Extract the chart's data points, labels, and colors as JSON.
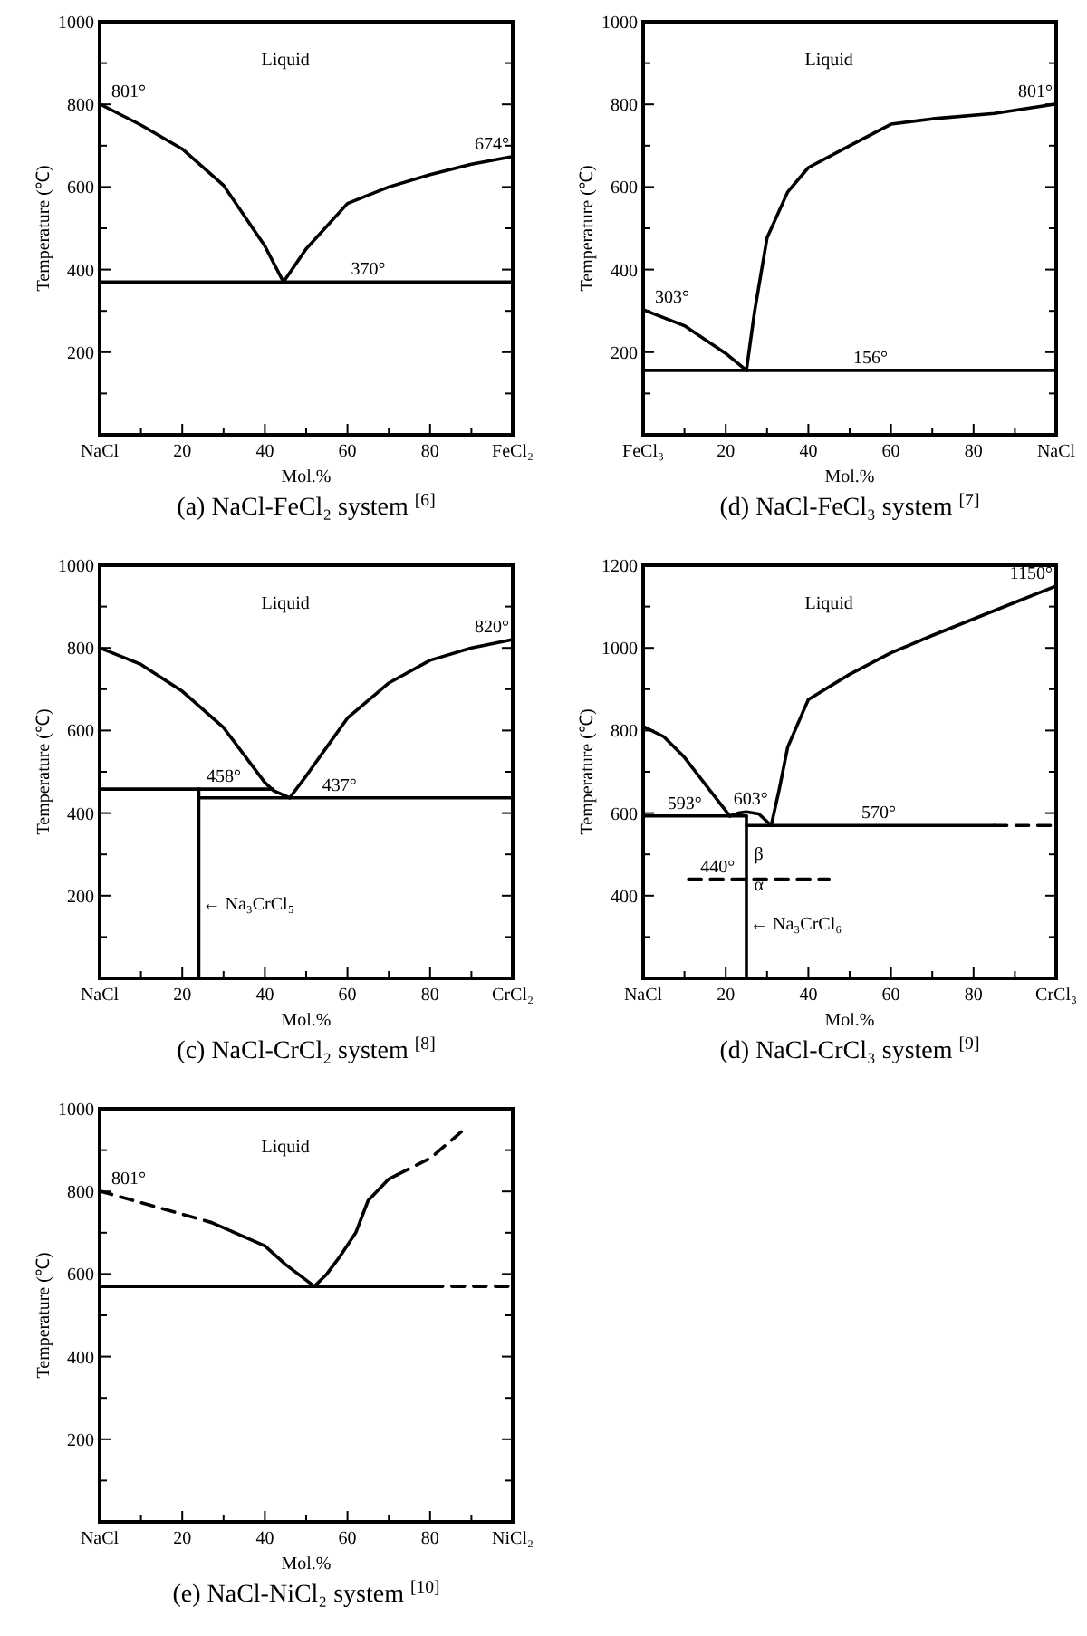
{
  "chart_data": [
    {
      "type": "line",
      "title": "(a) NaCl-FeCl₂ system $^{[6]}$",
      "xlabel": "Mol.%",
      "ylabel": "Temperature (℃)",
      "xlim": [
        0,
        100
      ],
      "ylim": [
        0,
        1000
      ],
      "xticks": [
        {
          "value": 0,
          "label": "NaCl"
        },
        {
          "value": 10,
          "label": null
        },
        20,
        {
          "value": 30,
          "label": null
        },
        40,
        {
          "value": 50,
          "label": null
        },
        60,
        {
          "value": 70,
          "label": null
        },
        80,
        {
          "value": 90,
          "label": null
        },
        {
          "value": 100,
          "label": "FeCl₂"
        }
      ],
      "yticks": [
        {
          "value": 0,
          "label": null
        },
        {
          "value": 100,
          "label": null
        },
        200,
        {
          "value": 300,
          "label": null
        },
        400,
        {
          "value": 500,
          "label": null
        },
        600,
        {
          "value": 700,
          "label": null
        },
        800,
        {
          "value": 900,
          "label": null
        },
        1000
      ],
      "series": [
        {
          "color": "#000000",
          "x": [
            0,
            10,
            20,
            30,
            40,
            44.5
          ],
          "values": [
            801,
            750,
            692,
            604,
            457,
            370
          ]
        },
        {
          "color": "#000000",
          "x": [
            44.5,
            50,
            60,
            70,
            80,
            90,
            100
          ],
          "values": [
            370,
            450,
            560,
            600,
            630,
            655,
            674
          ]
        },
        {
          "color": "#000000",
          "x": [
            0,
            100
          ],
          "values": [
            370,
            370
          ]
        }
      ],
      "annotations": [
        "Liquid",
        {
          "text": "801°",
          "x": 2,
          "y": 801
        },
        {
          "text": "674°",
          "x": 100,
          "y": 674
        },
        {
          "text": "370°",
          "x": 60,
          "y": 370
        }
      ]
    },
    {
      "type": "line",
      "title": "(d) NaCl-FeCl₃ system $^{[7]}$",
      "xlabel": "Mol.%",
      "ylabel": "Temperature (℃)",
      "xlim": [
        0,
        100
      ],
      "ylim": [
        0,
        1000
      ],
      "xticks": [
        {
          "value": 0,
          "label": "FeCl₃"
        },
        {
          "value": 10,
          "label": null
        },
        20,
        {
          "value": 30,
          "label": null
        },
        40,
        {
          "value": 50,
          "label": null
        },
        60,
        {
          "value": 70,
          "label": null
        },
        80,
        {
          "value": 90,
          "label": null
        },
        {
          "value": 100,
          "label": "NaCl"
        }
      ],
      "yticks": [
        {
          "value": 0,
          "label": null
        },
        {
          "value": 100,
          "label": null
        },
        200,
        {
          "value": 300,
          "label": null
        },
        400,
        {
          "value": 500,
          "label": null
        },
        600,
        {
          "value": 700,
          "label": null
        },
        800,
        {
          "value": 900,
          "label": null
        },
        1000
      ],
      "series": [
        {
          "color": "#000000",
          "x": [
            0,
            10,
            20,
            25
          ],
          "values": [
            303,
            264,
            197,
            156
          ]
        },
        {
          "color": "#000000",
          "x": [
            25,
            27,
            30,
            35,
            40,
            50,
            60,
            70,
            85,
            100
          ],
          "values": [
            156,
            300,
            477,
            588,
            647,
            700,
            752,
            765,
            778,
            801
          ]
        },
        {
          "color": "#000000",
          "x": [
            0,
            100
          ],
          "values": [
            156,
            156
          ]
        }
      ],
      "annotations": [
        "Liquid",
        {
          "text": "303°",
          "x": 2,
          "y": 303
        },
        {
          "text": "801°",
          "x": 100,
          "y": 801
        },
        {
          "text": "156°",
          "x": 50,
          "y": 156
        }
      ]
    },
    {
      "type": "line",
      "title": "(c) NaCl-CrCl₂ system $^{[8]}$",
      "xlabel": "Mol.%",
      "ylabel": "Temperature (℃)",
      "xlim": [
        0,
        100
      ],
      "ylim": [
        0,
        1000
      ],
      "xticks": [
        {
          "value": 0,
          "label": "NaCl"
        },
        {
          "value": 10,
          "label": null
        },
        20,
        {
          "value": 30,
          "label": null
        },
        40,
        {
          "value": 50,
          "label": null
        },
        60,
        {
          "value": 70,
          "label": null
        },
        80,
        {
          "value": 90,
          "label": null
        },
        {
          "value": 100,
          "label": "CrCl₂"
        }
      ],
      "yticks": [
        {
          "value": 0,
          "label": null
        },
        {
          "value": 100,
          "label": null
        },
        200,
        {
          "value": 300,
          "label": null
        },
        400,
        {
          "value": 500,
          "label": null
        },
        600,
        {
          "value": 700,
          "label": null
        },
        800,
        {
          "value": 900,
          "label": null
        },
        1000
      ],
      "series": [
        {
          "color": "#000000",
          "x": [
            0,
            10,
            20,
            30,
            40,
            42,
            46
          ],
          "values": [
            800,
            760,
            695,
            607,
            474,
            455,
            437
          ]
        },
        {
          "color": "#000000",
          "x": [
            46,
            50,
            55,
            60,
            70,
            80,
            90,
            100
          ],
          "values": [
            437,
            490,
            560,
            630,
            715,
            770,
            800,
            820
          ]
        },
        {
          "color": "#000000",
          "x": [
            0,
            42
          ],
          "values": [
            458,
            458
          ]
        },
        {
          "color": "#000000",
          "x": [
            24,
            100
          ],
          "values": [
            437,
            437
          ]
        },
        {
          "color": "#000000",
          "x": [
            24,
            24
          ],
          "values": [
            0,
            458
          ]
        }
      ],
      "annotations": [
        "Liquid",
        {
          "text": "820°",
          "x": 100,
          "y": 820
        },
        {
          "text": "458°",
          "x": 25,
          "y": 458
        },
        {
          "text": "437°",
          "x": 53,
          "y": 437
        },
        {
          "text": "← Na₃CrCl₅",
          "x": 24,
          "y": 150
        }
      ]
    },
    {
      "type": "line",
      "title": "(d) NaCl-CrCl₃ system $^{[9]}$",
      "xlabel": "Mol.%",
      "ylabel": "Temperature (℃)",
      "xlim": [
        0,
        100
      ],
      "ylim": [
        200,
        1200
      ],
      "xticks": [
        {
          "value": 0,
          "label": "NaCl"
        },
        {
          "value": 10,
          "label": null
        },
        20,
        {
          "value": 30,
          "label": null
        },
        40,
        {
          "value": 50,
          "label": null
        },
        60,
        {
          "value": 70,
          "label": null
        },
        80,
        {
          "value": 90,
          "label": null
        },
        {
          "value": 100,
          "label": "CrCl₃"
        }
      ],
      "yticks": [
        {
          "value": 200,
          "label": null
        },
        {
          "value": 300,
          "label": null
        },
        400,
        {
          "value": 500,
          "label": null
        },
        600,
        {
          "value": 700,
          "label": null
        },
        800,
        {
          "value": 900,
          "label": null
        },
        1000,
        {
          "value": 1100,
          "label": null
        },
        1200
      ],
      "series": [
        {
          "color": "#000000",
          "x": [
            0,
            5,
            10,
            15,
            21
          ],
          "values": [
            810,
            785,
            735,
            670,
            593
          ]
        },
        {
          "color": "#000000",
          "x": [
            21,
            23,
            25,
            28,
            31
          ],
          "values": [
            593,
            600,
            603,
            598,
            570
          ]
        },
        {
          "color": "#000000",
          "x": [
            31,
            33,
            35,
            40,
            50,
            60,
            70,
            80,
            90,
            100
          ],
          "values": [
            570,
            660,
            760,
            875,
            936,
            988,
            1030,
            1070,
            1110,
            1150
          ]
        },
        {
          "color": "#000000",
          "x": [
            0,
            25
          ],
          "values": [
            593,
            593
          ]
        },
        {
          "color": "#000000",
          "x": [
            25,
            85
          ],
          "values": [
            570,
            570
          ]
        },
        {
          "color": "#000000",
          "line_style": "dashed",
          "x": [
            85,
            100
          ],
          "values": [
            570,
            570
          ]
        },
        {
          "color": "#000000",
          "x": [
            25,
            25
          ],
          "values": [
            200,
            593
          ]
        },
        {
          "color": "#000000",
          "line_style": "dashed",
          "x": [
            11,
            45
          ],
          "values": [
            440,
            440
          ]
        }
      ],
      "annotations": [
        "Liquid",
        {
          "text": "1150°",
          "x": 100,
          "y": 1150
        },
        {
          "text": "593°",
          "x": 5,
          "y": 593
        },
        {
          "text": "603°",
          "x": 21,
          "y": 603
        },
        {
          "text": "570°",
          "x": 52,
          "y": 570
        },
        {
          "text": "440°",
          "x": 13,
          "y": 440
        },
        {
          "text": "β",
          "x": 26,
          "y": 470
        },
        {
          "text": "α",
          "x": 26,
          "y": 395
        },
        {
          "text": "← Na₃CrCl₆",
          "x": 25,
          "y": 300
        }
      ]
    },
    {
      "type": "line",
      "title": "(e) NaCl-NiCl₂ system $^{[10]}$",
      "xlabel": "Mol.%",
      "ylabel": "Temperature (℃)",
      "xlim": [
        0,
        100
      ],
      "ylim": [
        0,
        1000
      ],
      "xticks": [
        {
          "value": 0,
          "label": "NaCl"
        },
        {
          "value": 10,
          "label": null
        },
        20,
        {
          "value": 30,
          "label": null
        },
        40,
        {
          "value": 50,
          "label": null
        },
        60,
        {
          "value": 70,
          "label": null
        },
        80,
        {
          "value": 90,
          "label": null
        },
        {
          "value": 100,
          "label": "NiCl₂"
        }
      ],
      "yticks": [
        {
          "value": 0,
          "label": null
        },
        {
          "value": 100,
          "label": null
        },
        200,
        {
          "value": 300,
          "label": null
        },
        400,
        {
          "value": 500,
          "label": null
        },
        600,
        {
          "value": 700,
          "label": null
        },
        800,
        {
          "value": 900,
          "label": null
        },
        1000
      ],
      "series": [
        {
          "color": "#000000",
          "line_style": "dashed",
          "x": [
            0,
            27
          ],
          "values": [
            801,
            725
          ]
        },
        {
          "color": "#000000",
          "x": [
            27,
            35,
            40,
            45,
            52
          ],
          "values": [
            725,
            690,
            668,
            623,
            570
          ]
        },
        {
          "color": "#000000",
          "x": [
            52,
            55,
            58,
            62,
            65,
            70,
            72
          ],
          "values": [
            570,
            600,
            640,
            700,
            778,
            830,
            840
          ]
        },
        {
          "color": "#000000",
          "line_style": "dashed",
          "x": [
            72,
            80,
            88
          ],
          "values": [
            840,
            880,
            948
          ]
        },
        {
          "color": "#000000",
          "x": [
            0,
            80
          ],
          "values": [
            570,
            570
          ]
        },
        {
          "color": "#000000",
          "line_style": "dashed",
          "x": [
            80,
            100
          ],
          "values": [
            570,
            570
          ]
        }
      ],
      "annotations": [
        "Liquid",
        {
          "text": "801°",
          "x": 2,
          "y": 801
        }
      ]
    }
  ]
}
